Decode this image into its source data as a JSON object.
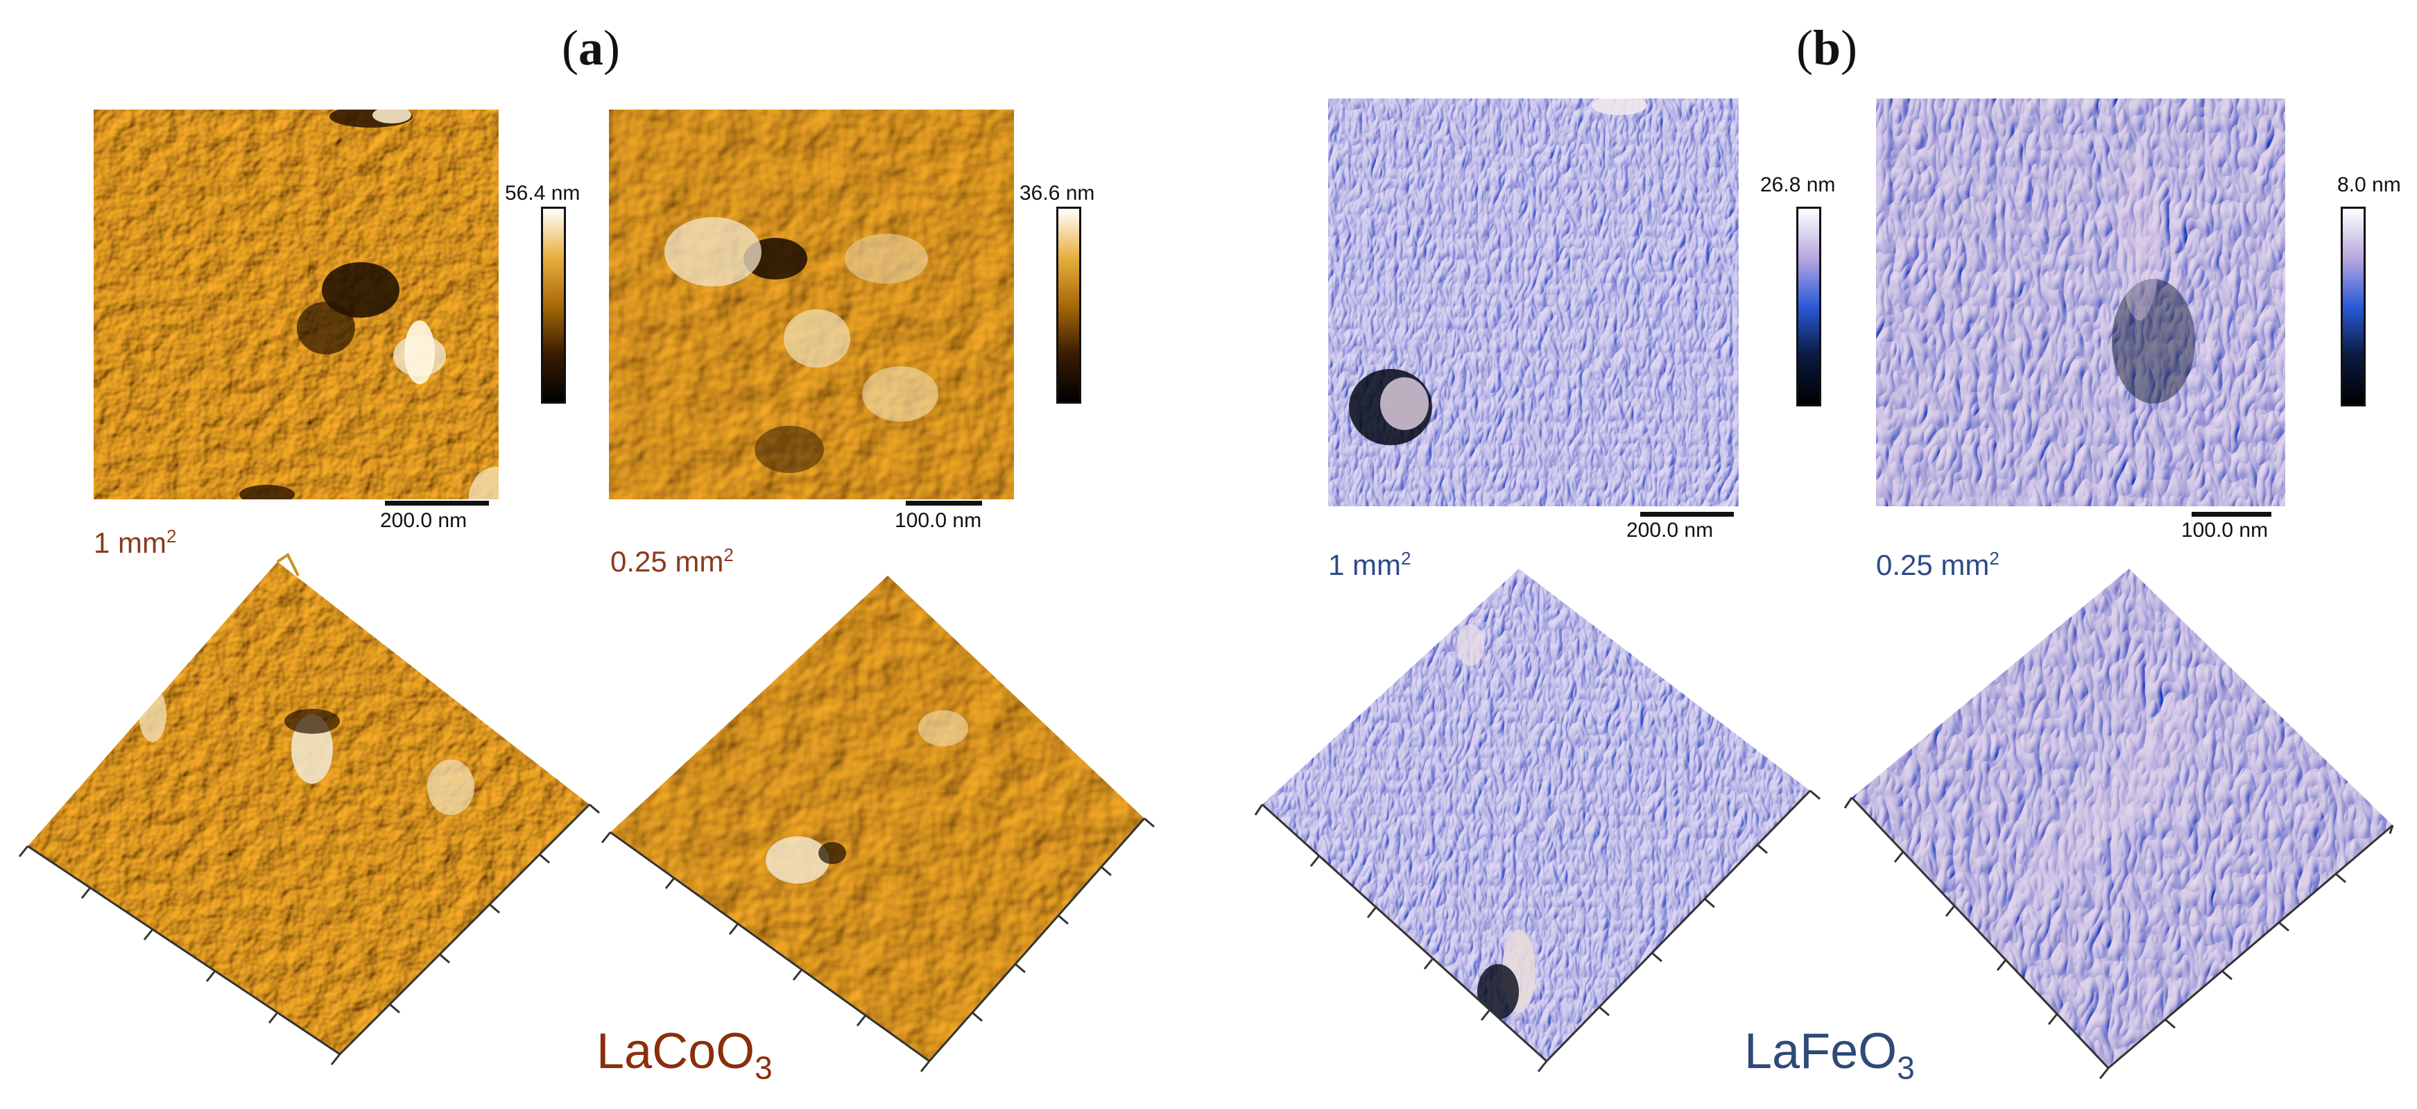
{
  "panel_a": {
    "label_open": "(",
    "label_letter": "a",
    "label_close": ")",
    "material_prefix": "LaCoO",
    "material_sub": "3",
    "material_color": "#8B2E0C",
    "area_color": "#8B3A1E",
    "colormap": [
      "#000000",
      "#3a1d02",
      "#8a5a05",
      "#d99a10",
      "#f0c050",
      "#ffffff"
    ],
    "left": {
      "colorbar_max": "56.4 nm",
      "scalebar": "200.0 nm",
      "area_value": "1 mm",
      "area_sup": "2"
    },
    "right": {
      "colorbar_max": "36.6 nm",
      "scalebar": "100.0 nm",
      "area_value": "0.25 mm",
      "area_sup": "2"
    }
  },
  "panel_b": {
    "label_open": "(",
    "label_letter": "b",
    "label_close": ")",
    "material_prefix": "LaFeO",
    "material_sub": "3",
    "material_color": "#2E4A78",
    "area_color": "#2E4A88",
    "colormap": [
      "#000000",
      "#0a1a40",
      "#2a5ad8",
      "#6a88f0",
      "#c8b8e8",
      "#ffffff"
    ],
    "left": {
      "colorbar_max": "26.8 nm",
      "scalebar": "200.0 nm",
      "area_value": "1 mm",
      "area_sup": "2"
    },
    "right": {
      "colorbar_max": "8.0 nm",
      "scalebar": "100.0 nm",
      "area_value": "0.25 mm",
      "area_sup": "2"
    }
  }
}
